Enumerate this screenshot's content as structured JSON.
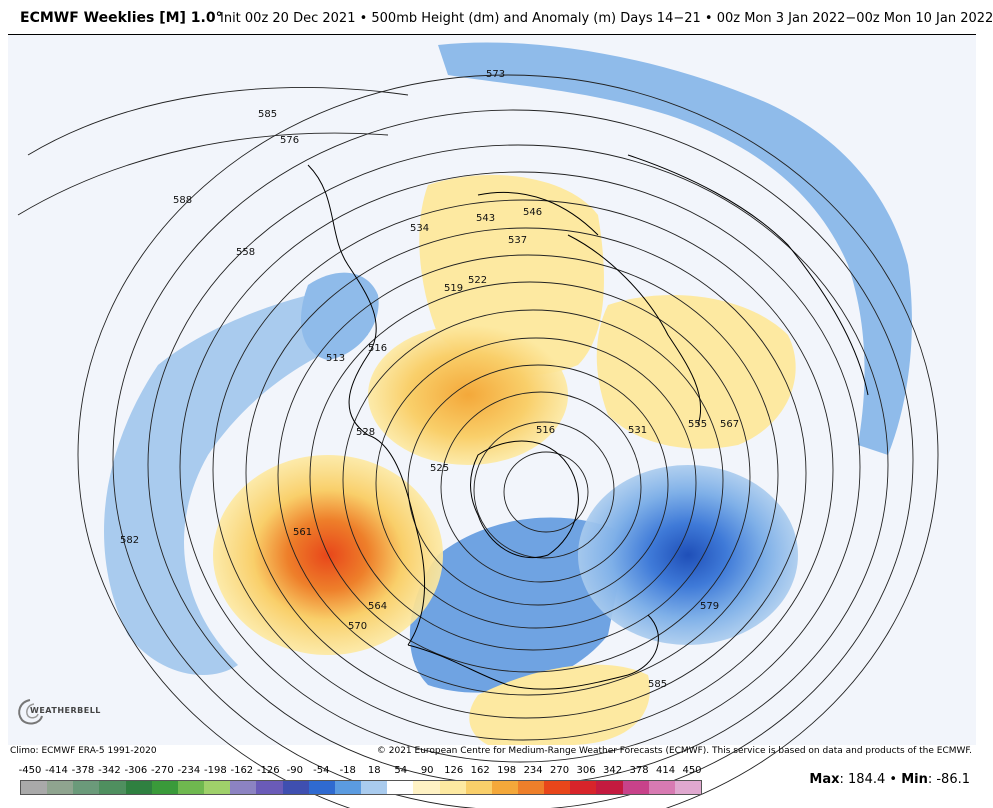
{
  "header": {
    "title_bold": "ECMWF Weeklies [M] 1.0°",
    "title_rest": "Init 00z 20 Dec 2021 • 500mb Height (dm) and Anomaly (m) Days 14−21 • 00z Mon 3 Jan 2022−00z Mon 10 Jan 2022"
  },
  "map": {
    "contour_labels": [
      "573",
      "585",
      "576",
      "588",
      "558",
      "534",
      "543",
      "546",
      "537",
      "522",
      "519",
      "516",
      "513",
      "528",
      "525",
      "561",
      "582",
      "564",
      "570",
      "579",
      "585",
      "555",
      "567",
      "531",
      "516"
    ],
    "anomaly_colors": {
      "positive_strong": "#e8461a",
      "positive_mid": "#f4a83a",
      "positive_weak": "#fde9a1",
      "negative_weak": "#a9cbee",
      "negative_mid": "#5b9be0",
      "negative_strong": "#1f5bc4"
    }
  },
  "logo": {
    "text": "WEATHERBELL"
  },
  "credits": {
    "left": "Climo: ECMWF ERA-5 1991-2020",
    "right": "© 2021 European Centre for Medium-Range Weather Forecasts (ECMWF). This service is based on data and products of the ECMWF."
  },
  "colorbar": {
    "ticks": [
      "-450",
      "-414",
      "-378",
      "-342",
      "-306",
      "-270",
      "-234",
      "-198",
      "-162",
      "-126",
      "-90",
      "-54",
      "-18",
      "18",
      "54",
      "90",
      "126",
      "162",
      "198",
      "234",
      "270",
      "306",
      "342",
      "378",
      "414",
      "450"
    ],
    "colors": [
      "#a9a9a9",
      "#8fa48f",
      "#6b9a7a",
      "#4f8f5f",
      "#2f8040",
      "#3a9a3a",
      "#6fb84f",
      "#9fd06a",
      "#8c83c2",
      "#6a5bb8",
      "#3f4fb0",
      "#2f6ad0",
      "#5b9be0",
      "#a9cbee",
      "#ffffff",
      "#fff2c4",
      "#fde9a1",
      "#f9cf6a",
      "#f4a83a",
      "#ee7f2a",
      "#e8461a",
      "#d8242a",
      "#c41a3f",
      "#c8428a",
      "#d87ab2",
      "#e0a8cf"
    ]
  },
  "maxmin": {
    "max_label": "Max",
    "max_value": ": 184.4 • ",
    "min_label": "Min",
    "min_value": ": -86.1"
  }
}
